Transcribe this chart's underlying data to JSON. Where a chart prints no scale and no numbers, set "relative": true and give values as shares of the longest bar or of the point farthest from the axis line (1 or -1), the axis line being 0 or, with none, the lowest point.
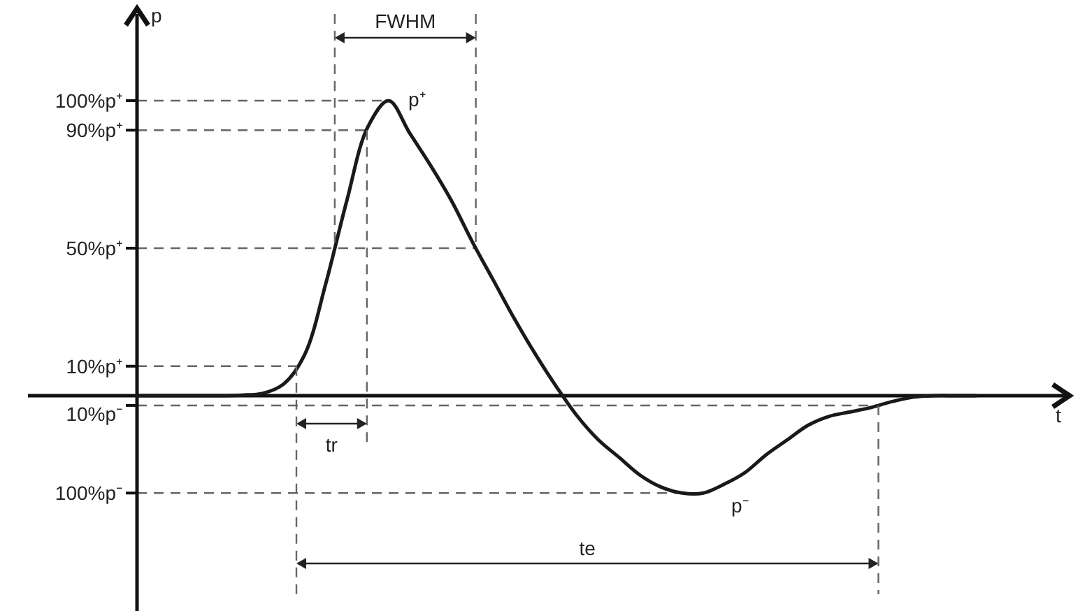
{
  "chart_data": {
    "type": "line",
    "xlabel": "t",
    "ylabel": "p",
    "relative": true,
    "categories": [
      null,
      null,
      null,
      null,
      null,
      null,
      null,
      null,
      null,
      null,
      null,
      null,
      null,
      null,
      null,
      null,
      null,
      null,
      null,
      null,
      null,
      null,
      null,
      null,
      null,
      null,
      null,
      null,
      null,
      null,
      null,
      null,
      null,
      null,
      null,
      null,
      null,
      null,
      null,
      null,
      null
    ],
    "series": [
      {
        "color": "#1a1a1a",
        "values": [
          0,
          0,
          0,
          0,
          0,
          0.002,
          0.008,
          0.04,
          0.14,
          0.38,
          0.66,
          0.91,
          1,
          0.89,
          0.78,
          0.66,
          0.52,
          0.39,
          0.26,
          0.14,
          0.03,
          -0.07,
          -0.15,
          -0.21,
          -0.27,
          -0.31,
          -0.33,
          -0.33,
          -0.3,
          -0.26,
          -0.2,
          -0.15,
          -0.1,
          -0.07,
          -0.055,
          -0.04,
          -0.02,
          -0.005,
          0,
          0,
          0
        ]
      }
    ],
    "ref_lines": [
      {
        "axis": "y",
        "value": 1,
        "label": "100%p⁺",
        "line_style": "dashed",
        "color": "#666666"
      },
      {
        "axis": "y",
        "value": 0.9,
        "label": "90%p⁺",
        "line_style": "dashed",
        "color": "#666666"
      },
      {
        "axis": "y",
        "value": 0.5,
        "label": "50%p⁺",
        "line_style": "dashed",
        "color": "#666666"
      },
      {
        "axis": "y",
        "value": 0.1,
        "label": "10%p⁺",
        "line_style": "dashed",
        "color": "#666666"
      },
      {
        "axis": "y",
        "value": -0.033,
        "label": "10%p⁻",
        "line_style": "dashed",
        "color": "#666666"
      },
      {
        "axis": "y",
        "value": -0.33,
        "label": "100%p⁻",
        "line_style": "dashed",
        "color": "#666666"
      }
    ],
    "annotations": [
      "FWHM",
      "tr",
      "te",
      "p⁺",
      "p⁻"
    ],
    "line_style": "solid"
  }
}
